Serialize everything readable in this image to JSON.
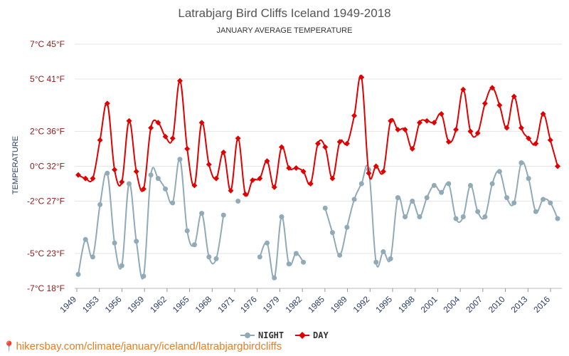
{
  "source": {
    "text": "hikersbay.com/climate/january/iceland/latrabjargbirdcliffs",
    "pin_icon": "map-pin-icon"
  },
  "chart_data": {
    "type": "line",
    "title": "Latrabjarg Bird Cliffs Iceland 1949-2018",
    "subtitle": "JANUARY AVERAGE TEMPERATURE",
    "ylabel": "TEMPERATURE",
    "xlabel": "",
    "ylim": [
      -7,
      7
    ],
    "y_ticks": [
      {
        "value": 7,
        "label": "7°C 45°F"
      },
      {
        "value": 5,
        "label": "5°C 41°F"
      },
      {
        "value": 2,
        "label": "2°C 36°F"
      },
      {
        "value": 0,
        "label": "0°C 32°F"
      },
      {
        "value": -2,
        "label": "-2°C 27°F"
      },
      {
        "value": -5,
        "label": "-5°C 23°F"
      },
      {
        "value": -7,
        "label": "-7°C 18°F"
      }
    ],
    "x_tick_labels": [
      "1949",
      "1953",
      "1956",
      "1959",
      "1962",
      "1965",
      "1968",
      "1971",
      "1976",
      "1979",
      "1982",
      "1985",
      "1989",
      "1992",
      "1995",
      "1998",
      "2001",
      "2004",
      "2007",
      "2010",
      "2013",
      "2016"
    ],
    "grid": true,
    "legend_position": "bottom-center",
    "colors": {
      "night": "#90aab8",
      "day": "#e00000"
    },
    "series": [
      {
        "name": "NIGHT",
        "color": "#90aab8",
        "values": [
          -6.2,
          -4.2,
          -5.2,
          -2.2,
          -0.4,
          -4.4,
          -5.7,
          -1.0,
          -4.3,
          -6.3,
          -0.5,
          -0.7,
          -1.3,
          -2.1,
          0.4,
          -3.7,
          -4.5,
          -2.7,
          -5.2,
          -5.3,
          -2.8,
          null,
          -2.0,
          null,
          null,
          -5.2,
          -4.4,
          -6.4,
          -2.9,
          -5.6,
          -5.0,
          -5.5,
          null,
          null,
          -2.4,
          -3.8,
          -5.1,
          -3.5,
          -1.9,
          -1.0,
          -0.2,
          -5.5,
          -4.9,
          -5.3,
          -1.8,
          -2.9,
          -2.0,
          -2.9,
          -1.8,
          -1.1,
          -1.5,
          -1.0,
          -3.0,
          -2.9,
          -1.1,
          -2.6,
          -2.9,
          -1.0,
          -0.3,
          -1.8,
          -2.1,
          0.2,
          -0.7,
          -2.6,
          -1.9,
          -2.1,
          -3.0
        ]
      },
      {
        "name": "DAY",
        "color": "#e00000",
        "values": [
          -0.5,
          -0.7,
          -0.7,
          1.5,
          3.6,
          -0.2,
          -0.9,
          2.6,
          -0.3,
          -1.3,
          2.2,
          2.5,
          1.7,
          1.6,
          4.9,
          1.0,
          -1.1,
          2.5,
          0.1,
          -0.7,
          0.8,
          -1.4,
          1.6,
          -1.6,
          -0.8,
          -0.7,
          0.3,
          -1.2,
          1.1,
          -0.1,
          -0.1,
          -0.3,
          -1.0,
          1.3,
          1.1,
          -0.7,
          1.4,
          1.3,
          2.9,
          5.1,
          -0.4,
          0.0,
          -0.3,
          2.6,
          2.1,
          2.1,
          1.0,
          2.5,
          2.6,
          2.5,
          3.0,
          1.4,
          2.1,
          4.4,
          2.0,
          1.9,
          3.6,
          4.5,
          3.5,
          2.2,
          4.0,
          2.2,
          1.6,
          1.3,
          3.0,
          1.5,
          0.0
        ]
      }
    ]
  }
}
